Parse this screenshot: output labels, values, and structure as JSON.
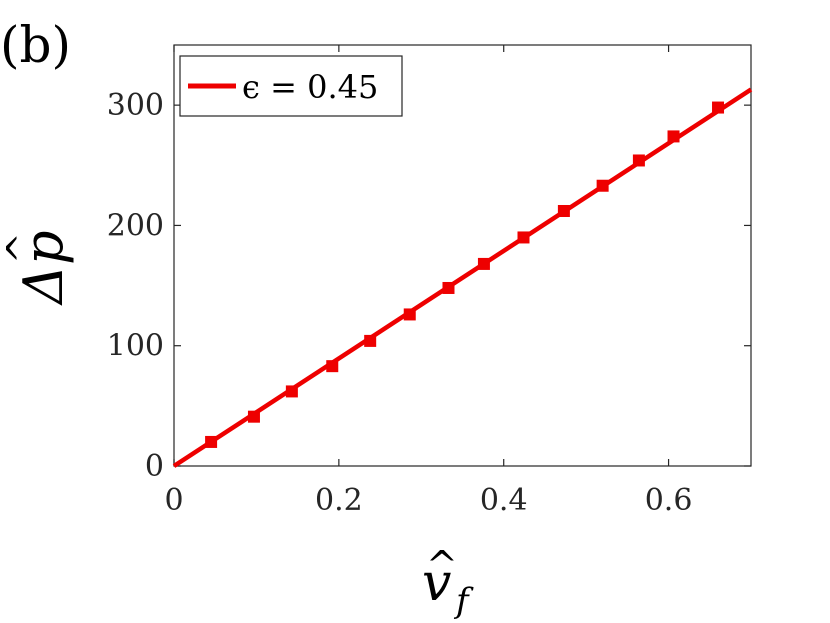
{
  "panel_label": "(b)",
  "colors": {
    "series": "#ee0000",
    "axes": "#262626",
    "background": "#ffffff"
  },
  "chart_data": {
    "type": "line",
    "xlabel": "v̂_f",
    "ylabel": "Δp̂",
    "xlim": [
      0,
      0.7
    ],
    "ylim": [
      0,
      350
    ],
    "x_ticks": [
      0,
      0.2,
      0.4,
      0.6
    ],
    "x_tick_labels": [
      "0",
      "0.2",
      "0.4",
      "0.6"
    ],
    "y_ticks": [
      0,
      100,
      200,
      300
    ],
    "y_tick_labels": [
      "0",
      "100",
      "200",
      "300"
    ],
    "grid": false,
    "legend_position": "top-left",
    "series": [
      {
        "name": "ϵ = 0.45",
        "style": "line",
        "x": [
          0,
          0.7
        ],
        "y": [
          0,
          313
        ]
      },
      {
        "name": "",
        "style": "square-markers",
        "x": [
          0.045,
          0.097,
          0.143,
          0.192,
          0.238,
          0.286,
          0.333,
          0.376,
          0.424,
          0.473,
          0.52,
          0.564,
          0.606,
          0.66
        ],
        "y": [
          20,
          41,
          62,
          83,
          104,
          126,
          148,
          168,
          190,
          212,
          233,
          254,
          274,
          298
        ]
      }
    ]
  }
}
